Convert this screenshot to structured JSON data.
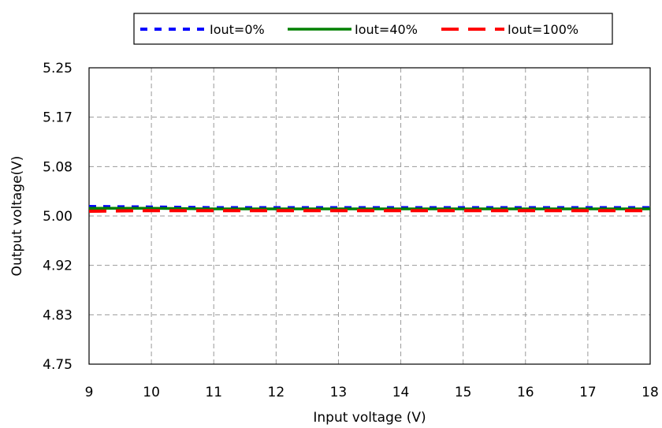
{
  "chart_data": {
    "type": "line",
    "title": "",
    "xlabel": "Input voltage (V)",
    "ylabel": "Output voltage(V)",
    "xlim": [
      9,
      18
    ],
    "ylim": [
      4.75,
      5.25
    ],
    "x_ticks": [
      "9",
      "10",
      "11",
      "12",
      "13",
      "14",
      "15",
      "16",
      "17",
      "18"
    ],
    "y_ticks": [
      "5.25",
      "5.17",
      "5.08",
      "5.00",
      "4.92",
      "4.83",
      "4.75"
    ],
    "grid": true,
    "legend_position": "top",
    "x": [
      9,
      10,
      11,
      12,
      13,
      14,
      15,
      16,
      17,
      18
    ],
    "series": [
      {
        "name": "Iout=0%",
        "color": "#0000ff",
        "style": "dotted",
        "values": [
          5.016,
          5.015,
          5.014,
          5.014,
          5.014,
          5.014,
          5.014,
          5.014,
          5.014,
          5.014
        ]
      },
      {
        "name": "Iout=40%",
        "color": "#008000",
        "style": "solid",
        "values": [
          5.013,
          5.013,
          5.012,
          5.012,
          5.012,
          5.012,
          5.012,
          5.012,
          5.012,
          5.012
        ]
      },
      {
        "name": "Iout=100%",
        "color": "#ff0000",
        "style": "dashed",
        "values": [
          5.008,
          5.009,
          5.009,
          5.009,
          5.009,
          5.009,
          5.009,
          5.009,
          5.009,
          5.009
        ]
      }
    ]
  }
}
